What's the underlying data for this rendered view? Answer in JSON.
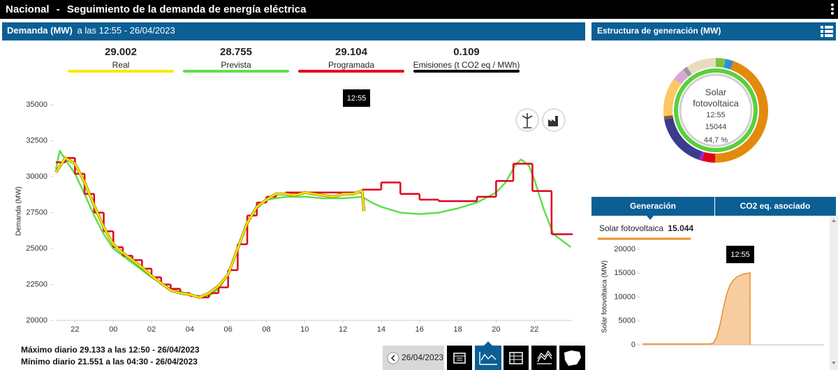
{
  "header": {
    "region": "Nacional",
    "separator": "-",
    "title": "Seguimiento de la demanda de energía eléctrica"
  },
  "demand_panel": {
    "title": "Demanda (MW)",
    "subtitle": "a las 12:55 - 26/04/2023",
    "emissions": {
      "value": "0.109",
      "label": "Emisiones (t CO2 eq / MWh)"
    },
    "tooltip": "12:55",
    "max_text": "Máximo diario 29.133 a las 12:50 - 26/04/2023",
    "min_text": "Mínimo diario 21.551 a las 04:30 - 26/04/2023",
    "date": "26/04/2023"
  },
  "generation_panel": {
    "title": "Estructura de generación (MW)",
    "center": {
      "name_lines": [
        "Solar",
        "fotovoltaica"
      ],
      "time": "12:55",
      "value": "15044",
      "share": "44,7 %"
    },
    "tabs": [
      "Generación",
      "CO2 eq. asociado"
    ],
    "tooltip": "12:55"
  },
  "chart_data": [
    {
      "type": "line",
      "ylabel": "Demanda (MW)",
      "xlim": [
        -3,
        24
      ],
      "ylim": [
        20000,
        35200
      ],
      "yticks": [
        20000,
        22500,
        25000,
        27500,
        30000,
        32500,
        35000
      ],
      "xticks": [
        {
          "value": -2,
          "label": "22"
        },
        {
          "value": 0,
          "label": "00"
        },
        {
          "value": 2,
          "label": "02"
        },
        {
          "value": 4,
          "label": "04"
        },
        {
          "value": 6,
          "label": "06"
        },
        {
          "value": 8,
          "label": "08"
        },
        10,
        12,
        14,
        16,
        18,
        20,
        22
      ],
      "grid": false,
      "series": [
        {
          "name": "Prevista",
          "color": "#5ee04a",
          "current": "28.755",
          "style": "line",
          "x": [
            -3,
            -2.8,
            -2.5,
            -2,
            -1.5,
            -1,
            -0.5,
            0,
            1,
            2,
            3,
            4,
            4.5,
            5,
            5.5,
            6,
            6.5,
            7,
            7.5,
            8,
            9,
            10,
            11,
            12,
            13,
            13.5,
            14,
            15,
            16,
            17,
            18,
            19,
            20,
            20.5,
            21,
            21.3,
            21.7,
            22,
            22.5,
            23,
            23.9
          ],
          "values": [
            30500,
            31800,
            31200,
            30200,
            28800,
            27300,
            26000,
            25000,
            24000,
            23000,
            22200,
            21800,
            21600,
            21700,
            22200,
            23200,
            25000,
            26800,
            27800,
            28400,
            28600,
            28600,
            28500,
            28500,
            28600,
            28200,
            27900,
            27500,
            27400,
            27500,
            27800,
            28200,
            28900,
            29600,
            30800,
            31200,
            30800,
            29800,
            27700,
            26000,
            25100
          ]
        },
        {
          "name": "Programada",
          "color": "#e3001b",
          "current": "29.104",
          "style": "step",
          "x": [
            -3,
            -2.5,
            -2,
            -1.5,
            -1,
            -0.5,
            0,
            0.5,
            1,
            1.5,
            2,
            2.5,
            3,
            3.5,
            4,
            4.5,
            5,
            5.5,
            6,
            6.5,
            7,
            7.5,
            8,
            8.5,
            9,
            10,
            11,
            12,
            13,
            14,
            15,
            16,
            17,
            18,
            19,
            20,
            20.9,
            21.9,
            22.9
          ],
          "values": [
            31000,
            31300,
            30200,
            28800,
            27500,
            26200,
            25100,
            24500,
            24200,
            23600,
            23000,
            22500,
            22200,
            21900,
            21700,
            21600,
            21900,
            22300,
            23500,
            25300,
            27300,
            28200,
            28600,
            28800,
            28900,
            28900,
            28900,
            28900,
            29100,
            29600,
            28800,
            28400,
            28300,
            28300,
            28600,
            29700,
            30900,
            29000,
            26000
          ]
        },
        {
          "name": "Real",
          "color": "#ffe600",
          "current": "29.002",
          "style": "line",
          "x": [
            -3,
            -2.5,
            -2,
            -1.5,
            -1,
            -0.5,
            0,
            0.5,
            1,
            1.5,
            2,
            2.5,
            3,
            3.5,
            4,
            4.5,
            5,
            5.5,
            6,
            6.5,
            7,
            7.5,
            8,
            8.5,
            9,
            9.5,
            10,
            10.5,
            11,
            11.5,
            12,
            12.5,
            13,
            13.1
          ],
          "values": [
            30300,
            31300,
            30900,
            29600,
            28000,
            26500,
            25300,
            24700,
            24200,
            23700,
            23100,
            22600,
            22100,
            21900,
            21800,
            21600,
            21900,
            22400,
            23200,
            25000,
            26800,
            27900,
            28400,
            28800,
            28800,
            28700,
            28900,
            28800,
            28700,
            28600,
            28800,
            28800,
            29000,
            27600
          ]
        }
      ]
    },
    {
      "type": "pie",
      "values": [
        3,
        2.5,
        44.7,
        4,
        1,
        17,
        1,
        12,
        4,
        1.5,
        9.3
      ],
      "colors": [
        "#7cc242",
        "#2f8fd8",
        "#e38a0c",
        "#e3001b",
        "#a020d0",
        "#3c3c8c",
        "#8b5a2b",
        "#fcc864",
        "#d8a8d0",
        "#9a9a9a",
        "#e8dcc0"
      ]
    },
    {
      "type": "area",
      "ylabel": "Solar fotovoltaica (MW)",
      "xlim": [
        -3,
        24
      ],
      "ylim": [
        0,
        20000
      ],
      "yticks": [
        0,
        5000,
        10000,
        15000,
        20000
      ],
      "series": [
        {
          "name": "Solar fotovoltaica",
          "current": "15.044",
          "color": "#e8902a",
          "x": [
            -3,
            0,
            3,
            6,
            7,
            7.5,
            8,
            8.5,
            9,
            9.5,
            10,
            10.5,
            11,
            11.5,
            12,
            12.5,
            13
          ],
          "values": [
            200,
            200,
            200,
            200,
            200,
            300,
            1500,
            4000,
            7500,
            10500,
            12500,
            13500,
            14200,
            14500,
            14800,
            14950,
            15044
          ]
        }
      ]
    }
  ]
}
